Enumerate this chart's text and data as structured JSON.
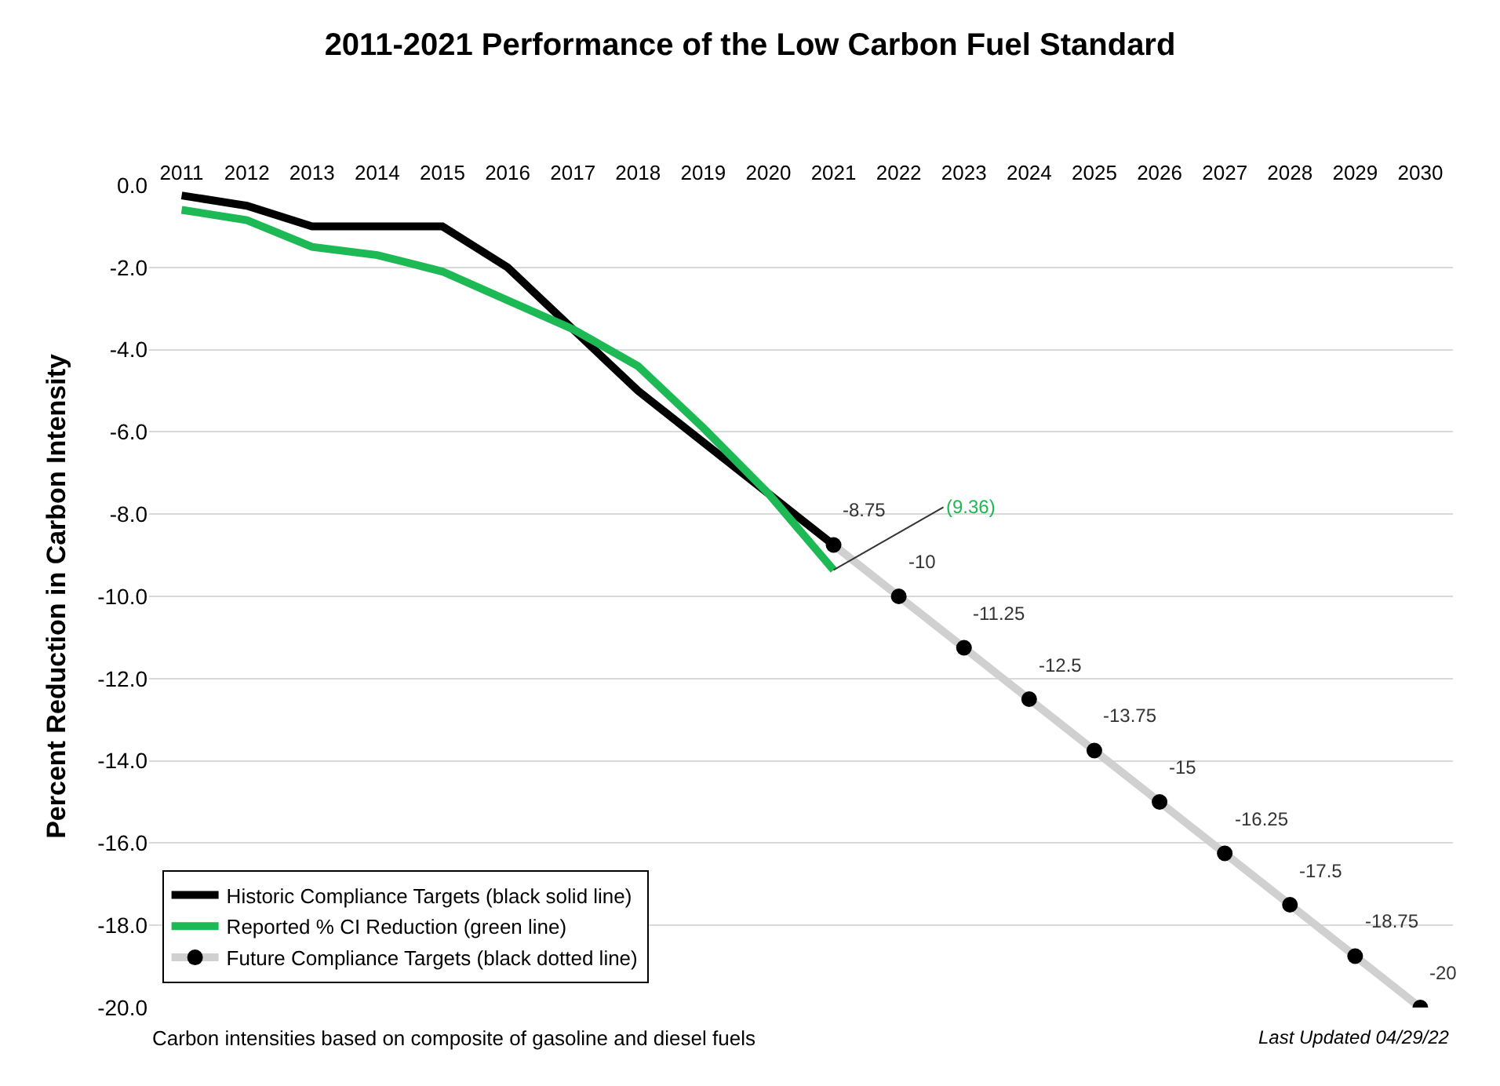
{
  "chart_data": {
    "type": "line",
    "title": "2011-2021 Performance of the Low Carbon Fuel Standard",
    "ylabel": "Percent Reduction in Carbon Intensity",
    "categories": [
      "2011",
      "2012",
      "2013",
      "2014",
      "2015",
      "2016",
      "2017",
      "2018",
      "2019",
      "2020",
      "2021",
      "2022",
      "2023",
      "2024",
      "2025",
      "2026",
      "2027",
      "2028",
      "2029",
      "2030"
    ],
    "series": [
      {
        "name": "Historic Compliance Targets (black solid line)",
        "color": "#000000",
        "marker": "none",
        "values": [
          -0.25,
          -0.5,
          -1.0,
          -1.0,
          -1.0,
          -2.0,
          -3.5,
          -5.0,
          -6.25,
          -7.5,
          -8.75,
          null,
          null,
          null,
          null,
          null,
          null,
          null,
          null,
          null
        ]
      },
      {
        "name": "Reported % CI Reduction (green line)",
        "color": "#1db954",
        "marker": "none",
        "values": [
          -0.6,
          -0.85,
          -1.5,
          -1.7,
          -2.1,
          -2.8,
          -3.5,
          -4.4,
          -5.9,
          -7.5,
          -9.36,
          null,
          null,
          null,
          null,
          null,
          null,
          null,
          null,
          null
        ],
        "value_labels": [
          null,
          null,
          null,
          null,
          null,
          null,
          null,
          null,
          null,
          null,
          "(9.36)",
          null,
          null,
          null,
          null,
          null,
          null,
          null,
          null,
          null
        ]
      },
      {
        "name": "Future Compliance Targets (black dotted line)",
        "color": "#d0d0d0",
        "marker": "circle",
        "values": [
          null,
          null,
          null,
          null,
          null,
          null,
          null,
          null,
          null,
          null,
          -8.75,
          -10,
          -11.25,
          -12.5,
          -13.75,
          -15,
          -16.25,
          -17.5,
          -18.75,
          -20
        ],
        "value_labels": [
          null,
          null,
          null,
          null,
          null,
          null,
          null,
          null,
          null,
          null,
          "-8.75",
          "-10",
          "-11.25",
          "-12.5",
          "-13.75",
          "-15",
          "-16.25",
          "-17.5",
          "-18.75",
          "-20"
        ]
      }
    ],
    "ylim": [
      -20,
      0
    ],
    "yticks": [
      {
        "value": 0,
        "label": "0.0"
      },
      {
        "value": -2,
        "label": "-2.0"
      },
      {
        "value": -4,
        "label": "-4.0"
      },
      {
        "value": -6,
        "label": "-6.0"
      },
      {
        "value": -8,
        "label": "-8.0"
      },
      {
        "value": -10,
        "label": "-10.0"
      },
      {
        "value": -12,
        "label": "-12.0"
      },
      {
        "value": -14,
        "label": "-14.0"
      },
      {
        "value": -16,
        "label": "-16.0"
      },
      {
        "value": -18,
        "label": "-18.0"
      },
      {
        "value": -20,
        "label": "-20.0"
      }
    ],
    "grid": "y",
    "legend": "bottom left",
    "annotations": [
      "Carbon intensities based on composite of gasoline and diesel fuels",
      "Last Updated 04/29/22"
    ]
  }
}
